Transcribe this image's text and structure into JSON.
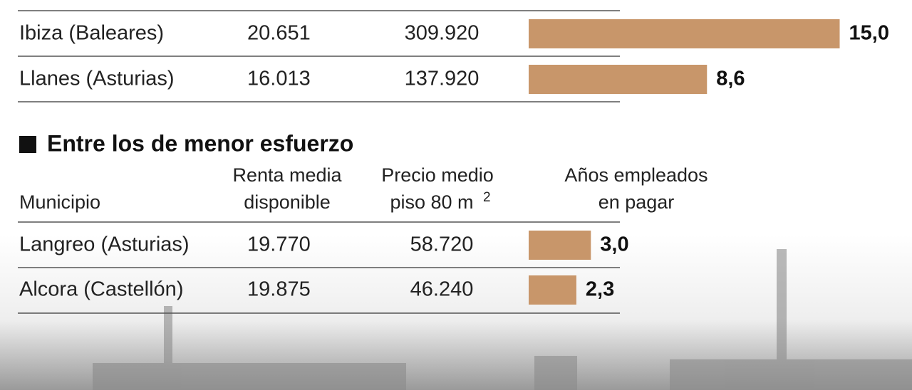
{
  "sections": [
    {
      "rows": [
        {
          "municipio": "Ibiza (Baleares)",
          "renta": "20.651",
          "precio": "309.920",
          "anios": 15.0,
          "anios_label": "15,0"
        },
        {
          "municipio": "Llanes (Asturias)",
          "renta": "16.013",
          "precio": "137.920",
          "anios": 8.6,
          "anios_label": "8,6"
        }
      ]
    },
    {
      "title": "Entre los de menor esfuerzo",
      "headers": {
        "municipio": "Municipio",
        "renta": [
          "Renta media",
          "disponible"
        ],
        "precio": [
          "Precio medio",
          "piso 80 m",
          "2"
        ],
        "anios": [
          "Años empleados",
          "en pagar"
        ]
      },
      "rows": [
        {
          "municipio": "Langreo (Asturias)",
          "renta": "19.770",
          "precio": "58.720",
          "anios": 3.0,
          "anios_label": "3,0"
        },
        {
          "municipio": "Alcora (Castellón)",
          "renta": "19.875",
          "precio": "46.240",
          "anios": 2.3,
          "anios_label": "2,3"
        }
      ]
    }
  ]
}
